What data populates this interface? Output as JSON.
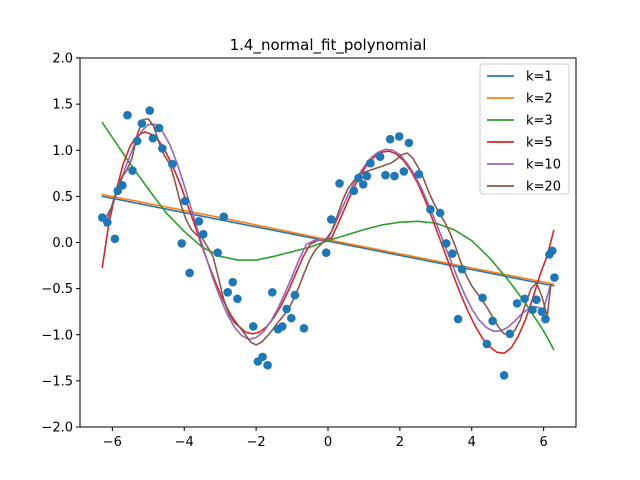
{
  "chart_data": {
    "type": "scatter",
    "title": "1.4_normal_fit_polynomial",
    "xlabel": "",
    "ylabel": "",
    "xlim": [
      -6.9,
      6.9
    ],
    "ylim": [
      -2.0,
      2.0
    ],
    "xticks": [
      -6,
      -4,
      -2,
      0,
      2,
      4,
      6
    ],
    "yticks": [
      -2.0,
      -1.5,
      -1.0,
      -0.5,
      0.0,
      0.5,
      1.0,
      1.5,
      2.0
    ],
    "xtick_labels": [
      "−6",
      "−4",
      "−2",
      "0",
      "2",
      "4",
      "6"
    ],
    "ytick_labels": [
      "−2.0",
      "−1.5",
      "−1.0",
      "−0.5",
      "0.0",
      "0.5",
      "1.0",
      "1.5",
      "2.0"
    ],
    "grid": false,
    "legend_position": "top-right",
    "scatter_color": "#1f77b4",
    "points": [
      [
        -6.28,
        0.27
      ],
      [
        -6.14,
        0.22
      ],
      [
        -5.93,
        0.04
      ],
      [
        -5.85,
        0.56
      ],
      [
        -5.72,
        0.62
      ],
      [
        -5.58,
        1.38
      ],
      [
        -5.44,
        0.78
      ],
      [
        -5.31,
        1.1
      ],
      [
        -5.18,
        1.29
      ],
      [
        -4.96,
        1.43
      ],
      [
        -4.87,
        1.13
      ],
      [
        -4.7,
        1.24
      ],
      [
        -4.61,
        1.02
      ],
      [
        -4.33,
        0.85
      ],
      [
        -4.07,
        -0.01
      ],
      [
        -3.98,
        0.45
      ],
      [
        -3.85,
        -0.33
      ],
      [
        -3.59,
        0.23
      ],
      [
        -3.47,
        0.09
      ],
      [
        -3.07,
        -0.11
      ],
      [
        -2.9,
        0.28
      ],
      [
        -2.79,
        -0.54
      ],
      [
        -2.65,
        -0.43
      ],
      [
        -2.52,
        -0.61
      ],
      [
        -2.08,
        -0.91
      ],
      [
        -1.95,
        -1.29
      ],
      [
        -1.82,
        -1.24
      ],
      [
        -1.68,
        -1.33
      ],
      [
        -1.55,
        -0.54
      ],
      [
        -1.39,
        -0.94
      ],
      [
        -1.27,
        -0.91
      ],
      [
        -1.15,
        -0.72
      ],
      [
        -1.02,
        -0.82
      ],
      [
        -0.92,
        -0.57
      ],
      [
        -0.67,
        -0.93
      ],
      [
        -0.05,
        -0.11
      ],
      [
        0.09,
        0.25
      ],
      [
        0.32,
        0.64
      ],
      [
        0.72,
        0.56
      ],
      [
        0.85,
        0.7
      ],
      [
        0.98,
        0.63
      ],
      [
        1.08,
        0.72
      ],
      [
        1.18,
        0.86
      ],
      [
        1.45,
        0.93
      ],
      [
        1.6,
        0.73
      ],
      [
        1.73,
        1.12
      ],
      [
        1.85,
        0.72
      ],
      [
        1.98,
        1.15
      ],
      [
        2.11,
        0.77
      ],
      [
        2.25,
        1.08
      ],
      [
        2.53,
        0.74
      ],
      [
        2.85,
        0.36
      ],
      [
        3.12,
        0.32
      ],
      [
        3.29,
        -0.01
      ],
      [
        3.46,
        -0.12
      ],
      [
        3.62,
        -0.83
      ],
      [
        3.73,
        -0.29
      ],
      [
        4.3,
        -0.6
      ],
      [
        4.42,
        -1.1
      ],
      [
        4.58,
        -0.85
      ],
      [
        4.9,
        -1.44
      ],
      [
        5.06,
        -0.99
      ],
      [
        5.26,
        -0.66
      ],
      [
        5.47,
        -0.61
      ],
      [
        5.69,
        -0.73
      ],
      [
        5.8,
        -0.62
      ],
      [
        5.95,
        -0.75
      ],
      [
        6.05,
        -0.83
      ],
      [
        6.16,
        -0.13
      ],
      [
        6.24,
        -0.09
      ],
      [
        6.3,
        -0.38
      ]
    ],
    "series": [
      {
        "name": "k=1",
        "color": "#1f77b4",
        "x": [
          -6.28,
          6.28
        ],
        "y": [
          0.5,
          -0.47
        ]
      },
      {
        "name": "k=2",
        "color": "#ff7f0e",
        "x": [
          -6.28,
          -3.0,
          0.0,
          3.0,
          6.28
        ],
        "y": [
          0.52,
          0.27,
          0.03,
          -0.2,
          -0.45
        ]
      },
      {
        "name": "k=3",
        "color": "#2ca02c",
        "x": [
          -6.28,
          -5.5,
          -5.0,
          -4.5,
          -4.0,
          -3.5,
          -3.0,
          -2.5,
          -2.0,
          -1.5,
          -1.0,
          -0.5,
          0.0,
          0.5,
          1.0,
          1.5,
          2.0,
          2.5,
          3.0,
          3.5,
          4.0,
          4.5,
          5.0,
          5.5,
          6.0,
          6.28
        ],
        "y": [
          1.3,
          0.85,
          0.58,
          0.32,
          0.12,
          -0.05,
          -0.15,
          -0.19,
          -0.19,
          -0.15,
          -0.1,
          -0.05,
          0.02,
          0.08,
          0.14,
          0.19,
          0.22,
          0.23,
          0.21,
          0.14,
          0.02,
          -0.17,
          -0.4,
          -0.66,
          -0.96,
          -1.16
        ]
      },
      {
        "name": "k=5",
        "color": "#d62728",
        "x": [
          -6.28,
          -6.1,
          -5.9,
          -5.7,
          -5.5,
          -5.3,
          -5.1,
          -4.9,
          -4.7,
          -4.5,
          -4.3,
          -4.1,
          -3.9,
          -3.7,
          -3.5,
          -3.3,
          -3.1,
          -2.9,
          -2.7,
          -2.5,
          -2.3,
          -2.1,
          -1.9,
          -1.7,
          -1.5,
          -1.3,
          -1.1,
          -0.9,
          -0.7,
          -0.5,
          -0.3,
          -0.1,
          0.1,
          0.3,
          0.5,
          0.7,
          0.9,
          1.1,
          1.3,
          1.5,
          1.7,
          1.9,
          2.1,
          2.3,
          2.5,
          2.7,
          2.9,
          3.1,
          3.3,
          3.5,
          3.7,
          3.9,
          4.1,
          4.3,
          4.5,
          4.7,
          4.9,
          5.1,
          5.3,
          5.5,
          5.7,
          5.9,
          6.1,
          6.28
        ],
        "y": [
          -0.27,
          0.2,
          0.55,
          0.85,
          1.05,
          1.16,
          1.2,
          1.17,
          1.1,
          0.97,
          0.81,
          0.62,
          0.4,
          0.18,
          -0.05,
          -0.26,
          -0.46,
          -0.64,
          -0.79,
          -0.9,
          -0.97,
          -0.99,
          -0.97,
          -0.91,
          -0.81,
          -0.68,
          -0.52,
          -0.34,
          -0.16,
          -0.02,
          0.02,
          0.03,
          0.05,
          0.22,
          0.4,
          0.58,
          0.73,
          0.85,
          0.93,
          0.98,
          0.99,
          0.96,
          0.89,
          0.78,
          0.64,
          0.46,
          0.26,
          0.05,
          -0.16,
          -0.37,
          -0.57,
          -0.75,
          -0.91,
          -1.04,
          -1.13,
          -1.19,
          -1.2,
          -1.14,
          -1.01,
          -0.83,
          -0.6,
          -0.35,
          -0.14,
          0.13
        ]
      },
      {
        "name": "k=10",
        "color": "#9467bd",
        "x": [
          -6.2,
          -6.0,
          -5.8,
          -5.6,
          -5.4,
          -5.2,
          -5.0,
          -4.8,
          -4.6,
          -4.4,
          -4.2,
          -4.0,
          -3.8,
          -3.6,
          -3.4,
          -3.2,
          -3.0,
          -2.8,
          -2.6,
          -2.4,
          -2.2,
          -2.0,
          -1.8,
          -1.6,
          -1.4,
          -1.2,
          -1.0,
          -0.8,
          -0.6,
          -0.4,
          -0.2,
          0.0,
          0.2,
          0.4,
          0.6,
          0.8,
          1.0,
          1.2,
          1.4,
          1.6,
          1.8,
          2.0,
          2.2,
          2.4,
          2.6,
          2.8,
          3.0,
          3.2,
          3.4,
          3.6,
          3.8,
          4.0,
          4.2,
          4.4,
          4.6,
          4.8,
          5.0,
          5.2,
          5.4,
          5.6,
          5.8,
          6.0,
          6.2
        ],
        "y": [
          0.26,
          0.4,
          0.62,
          0.85,
          1.05,
          1.2,
          1.28,
          1.28,
          1.2,
          1.06,
          0.86,
          0.62,
          0.36,
          0.1,
          -0.15,
          -0.39,
          -0.6,
          -0.78,
          -0.92,
          -1.01,
          -1.05,
          -1.03,
          -0.97,
          -0.86,
          -0.72,
          -0.55,
          -0.37,
          -0.18,
          -0.02,
          0.02,
          0.03,
          0.04,
          0.2,
          0.38,
          0.55,
          0.7,
          0.82,
          0.92,
          0.98,
          1.01,
          1.0,
          0.95,
          0.86,
          0.74,
          0.59,
          0.41,
          0.22,
          0.02,
          -0.18,
          -0.38,
          -0.56,
          -0.72,
          -0.84,
          -0.92,
          -0.96,
          -0.96,
          -0.92,
          -0.85,
          -0.77,
          -0.71,
          -0.7,
          -0.72,
          -0.45
        ]
      },
      {
        "name": "k=20",
        "color": "#8c564b",
        "x": [
          -6.2,
          -6.05,
          -5.9,
          -5.75,
          -5.6,
          -5.45,
          -5.3,
          -5.15,
          -5.0,
          -4.85,
          -4.7,
          -4.55,
          -4.4,
          -4.25,
          -4.1,
          -3.95,
          -3.8,
          -3.65,
          -3.5,
          -3.35,
          -3.2,
          -3.05,
          -2.9,
          -2.75,
          -2.6,
          -2.45,
          -2.3,
          -2.15,
          -2.0,
          -1.85,
          -1.7,
          -1.55,
          -1.4,
          -1.25,
          -1.1,
          -0.95,
          -0.8,
          -0.65,
          -0.5,
          -0.35,
          -0.2,
          -0.05,
          0.1,
          0.25,
          0.4,
          0.55,
          0.7,
          0.85,
          1.0,
          1.15,
          1.3,
          1.45,
          1.6,
          1.75,
          1.9,
          2.05,
          2.2,
          2.35,
          2.5,
          2.65,
          2.8,
          2.95,
          3.1,
          3.25,
          3.4,
          3.55,
          3.7,
          3.85,
          4.0,
          4.15,
          4.3,
          4.45,
          4.6,
          4.75,
          4.9,
          5.05,
          5.2,
          5.35,
          5.5,
          5.65,
          5.8,
          5.95,
          6.1,
          6.2
        ],
        "y": [
          0.18,
          0.35,
          0.55,
          0.7,
          0.78,
          0.92,
          1.18,
          1.33,
          1.34,
          1.26,
          1.08,
          0.94,
          0.85,
          0.65,
          0.42,
          0.25,
          0.14,
          0.08,
          0.05,
          -0.05,
          -0.15,
          -0.38,
          -0.62,
          -0.78,
          -0.87,
          -0.92,
          -1.0,
          -1.08,
          -1.11,
          -1.08,
          -1.02,
          -0.95,
          -0.87,
          -0.8,
          -0.72,
          -0.61,
          -0.47,
          -0.32,
          -0.18,
          -0.08,
          -0.02,
          0.04,
          0.12,
          0.28,
          0.45,
          0.58,
          0.66,
          0.72,
          0.76,
          0.78,
          0.8,
          0.82,
          0.84,
          0.86,
          0.9,
          0.95,
          0.97,
          0.92,
          0.82,
          0.7,
          0.55,
          0.42,
          0.32,
          0.22,
          0.1,
          -0.05,
          -0.22,
          -0.36,
          -0.47,
          -0.55,
          -0.63,
          -0.72,
          -0.82,
          -0.92,
          -0.99,
          -1.0,
          -0.95,
          -0.84,
          -0.66,
          -0.5,
          -0.44,
          -0.58,
          -0.8,
          -0.46
        ]
      }
    ]
  }
}
